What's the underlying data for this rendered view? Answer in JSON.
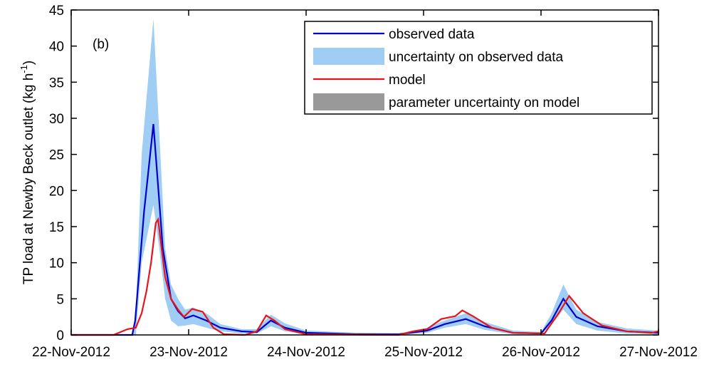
{
  "chart_data": {
    "type": "line",
    "annotation": "(b)",
    "y_label": {
      "text": "TP load at Newby Beck outlet (kg h",
      "superscript": "-1",
      "suffix": ")"
    },
    "xlim": [
      0,
      5
    ],
    "xticks": [
      {
        "value": 0,
        "label": "22-Nov-2012"
      },
      {
        "value": 1,
        "label": "23-Nov-2012"
      },
      {
        "value": 2,
        "label": "24-Nov-2012"
      },
      {
        "value": 3,
        "label": "25-Nov-2012"
      },
      {
        "value": 4,
        "label": "26-Nov-2012"
      },
      {
        "value": 5,
        "label": "27-Nov-2012"
      }
    ],
    "ylim": [
      0,
      45
    ],
    "yticks": [
      0,
      5,
      10,
      15,
      20,
      25,
      30,
      35,
      40,
      45
    ],
    "legend": "upper right",
    "bands": [
      {
        "name": "uncertainty on observed data",
        "color": "#9fcdf3",
        "x": [
          0,
          0.52,
          0.55,
          0.6,
          0.7,
          0.75,
          0.8,
          0.85,
          0.91,
          0.97,
          1.04,
          1.15,
          1.27,
          1.45,
          1.58,
          1.7,
          1.82,
          2.0,
          2.42,
          2.79,
          3.03,
          3.18,
          3.36,
          3.52,
          3.76,
          4.0,
          4.09,
          4.19,
          4.3,
          4.48,
          4.73,
          5.0
        ],
        "lower": [
          0,
          0,
          0,
          10,
          18,
          12,
          5,
          2,
          1.2,
          1.3,
          1.5,
          1,
          0.5,
          0.2,
          0.2,
          1.2,
          0.5,
          0.1,
          0,
          0,
          0.3,
          1,
          1.5,
          0.7,
          0.1,
          0.1,
          1.5,
          3.5,
          1.5,
          0.6,
          0.2,
          0.1
        ],
        "upper": [
          0,
          0,
          3,
          25,
          43.8,
          28,
          12,
          7,
          5,
          3.5,
          3.8,
          3,
          1.5,
          0.8,
          0.8,
          2.8,
          1.6,
          0.6,
          0.3,
          0.2,
          1,
          2,
          3,
          1.8,
          0.6,
          0.4,
          3,
          7,
          3.5,
          1.8,
          0.9,
          0.6
        ]
      },
      {
        "name": "parameter uncertainty on model",
        "color": "#999999"
      }
    ],
    "series": [
      {
        "name": "observed data",
        "color": "#0000cc",
        "x": [
          0,
          0.52,
          0.545,
          0.62,
          0.7,
          0.78,
          0.85,
          0.91,
          0.97,
          1.04,
          1.15,
          1.27,
          1.45,
          1.58,
          1.7,
          1.82,
          2.0,
          2.42,
          2.79,
          3.03,
          3.18,
          3.36,
          3.52,
          3.76,
          4.0,
          4.09,
          4.19,
          4.3,
          4.48,
          4.73,
          5.0
        ],
        "values": [
          0,
          0,
          2,
          17,
          29.2,
          12,
          5,
          3.3,
          2.3,
          2.7,
          2,
          1,
          0.5,
          0.4,
          2,
          1,
          0.3,
          0.1,
          0.1,
          0.6,
          1.5,
          2.2,
          1.2,
          0.3,
          0.2,
          2,
          5,
          2.5,
          1.2,
          0.5,
          0.3
        ]
      },
      {
        "name": "model",
        "color": "#e8141c",
        "x": [
          0,
          0.36,
          0.48,
          0.55,
          0.6,
          0.64,
          0.68,
          0.72,
          0.74,
          0.8,
          0.85,
          0.91,
          0.96,
          1.03,
          1.12,
          1.21,
          1.3,
          1.48,
          1.58,
          1.66,
          1.73,
          1.82,
          2.0,
          2.79,
          2.91,
          3.03,
          3.15,
          3.27,
          3.33,
          3.42,
          3.58,
          3.76,
          4.03,
          4.15,
          4.24,
          4.36,
          4.52,
          4.73,
          4.94,
          5.0
        ],
        "values": [
          0,
          0,
          0.8,
          1,
          3,
          6,
          10,
          15.5,
          16,
          8,
          5,
          3.5,
          2.5,
          3.6,
          3.2,
          1,
          0.1,
          0,
          0.5,
          2.7,
          2,
          0.8,
          0.1,
          0,
          0.5,
          0.8,
          2.2,
          2.6,
          3.4,
          2.6,
          1,
          0.3,
          0.2,
          3,
          5.4,
          3,
          1.3,
          0.5,
          0.3,
          0.5
        ]
      }
    ]
  }
}
